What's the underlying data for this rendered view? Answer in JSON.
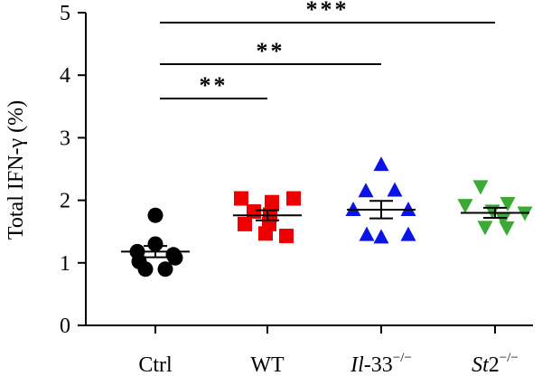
{
  "chart_data": {
    "type": "scatter",
    "title": "",
    "xlabel": "",
    "ylabel": "Total IFN-γ (%)",
    "ylim": [
      0,
      5
    ],
    "yticks": [
      "0",
      "1",
      "2",
      "3",
      "4",
      "5"
    ],
    "grid": false,
    "categories": [
      {
        "key": "Ctrl",
        "parts": [
          {
            "t": "Ctrl",
            "i": false
          }
        ],
        "sup": ""
      },
      {
        "key": "WT",
        "parts": [
          {
            "t": "WT",
            "i": false
          }
        ],
        "sup": ""
      },
      {
        "key": "Il-33-/-",
        "parts": [
          {
            "t": "Il",
            "i": true
          },
          {
            "t": "-33",
            "i": false
          }
        ],
        "sup": "−/−"
      },
      {
        "key": "St2-/-",
        "parts": [
          {
            "t": "St",
            "i": true
          },
          {
            "t": "2",
            "i": false
          }
        ],
        "sup": "−/−"
      }
    ],
    "series": [
      {
        "category": "Ctrl",
        "marker": "circle",
        "color": "#000000",
        "mean": 1.18,
        "sem": 0.09,
        "values": [
          1.76,
          1.3,
          1.18,
          1.13,
          1.02,
          1.08,
          0.9,
          0.9
        ]
      },
      {
        "category": "WT",
        "marker": "square",
        "color": "#ee0000",
        "mean": 1.76,
        "sem": 0.08,
        "values": [
          2.03,
          1.97,
          2.03,
          1.77,
          1.82,
          1.62,
          1.62,
          1.47,
          1.43
        ]
      },
      {
        "category": "Il-33-/-",
        "marker": "triangle-up",
        "color": "#0a14e6",
        "mean": 1.85,
        "sem": 0.14,
        "values": [
          2.57,
          2.15,
          2.16,
          1.85,
          1.85,
          1.45,
          1.41,
          1.45
        ]
      },
      {
        "category": "St2-/-",
        "marker": "triangle-down",
        "color": "#3aaa35",
        "mean": 1.8,
        "sem": 0.08,
        "values": [
          2.22,
          1.95,
          1.92,
          1.8,
          1.83,
          1.7,
          1.57,
          1.56
        ]
      }
    ],
    "significance": [
      {
        "from": "Ctrl",
        "to": "WT",
        "label": "**"
      },
      {
        "from": "Ctrl",
        "to": "Il-33-/-",
        "label": "**"
      },
      {
        "from": "Ctrl",
        "to": "St2-/-",
        "label": "***"
      }
    ]
  }
}
